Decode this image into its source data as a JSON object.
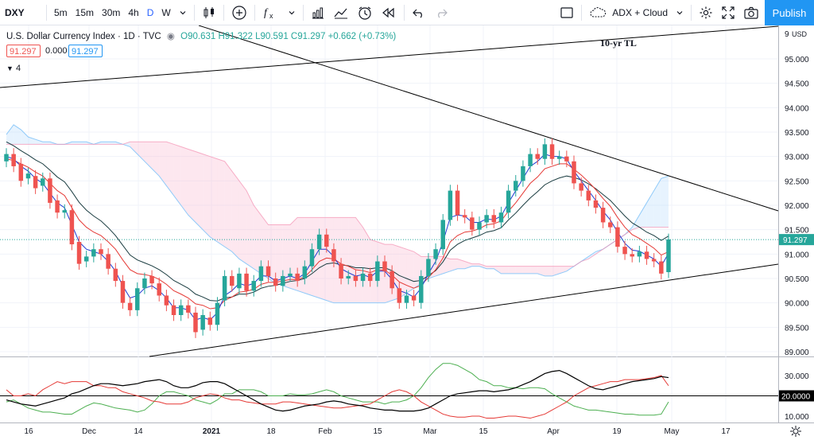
{
  "toolbar": {
    "symbol": "DXY",
    "intervals": [
      "5m",
      "15m",
      "30m",
      "4h",
      "D",
      "W"
    ],
    "active_interval": "D",
    "indicator_template": "ADX + Cloud",
    "publish_label": "Publish"
  },
  "legend": {
    "title": "U.S. Dollar Currency Index · 1D · TVC",
    "ohlc": "O90.631 H91.322 L90.591 C91.297 +0.662 (+0.73%)",
    "bid": "91.297",
    "spread": "0.000",
    "ask": "91.297",
    "indicators_toggle": "4"
  },
  "annotations": {
    "trendline_label": "10-yr TL"
  },
  "price_axis": {
    "currency": "USD",
    "ticks": [
      "95.000",
      "94.500",
      "94.000",
      "93.500",
      "93.000",
      "92.500",
      "92.000",
      "91.500",
      "91.000",
      "90.500",
      "90.000",
      "89.500",
      "89.000"
    ],
    "top_tick": "9",
    "last_price": "91.297"
  },
  "adx_axis": {
    "ticks": [
      "30.000",
      "10.000"
    ],
    "level": "20.0000"
  },
  "time_axis": {
    "labels": [
      "16",
      "Dec",
      "14",
      "2021",
      "18",
      "Feb",
      "15",
      "Mar",
      "15",
      "Apr",
      "19",
      "May",
      "17"
    ]
  },
  "chart_data": {
    "type": "candlestick",
    "title": "U.S. Dollar Currency Index · 1D · TVC",
    "ylim": [
      88.9,
      95.5
    ],
    "last_close": 91.297,
    "colors": {
      "up": "#26a69a",
      "down": "#ef5350",
      "ema_fast": "#1e3bd1",
      "ema_mid": "#e53935",
      "ema_slow": "#1a3c40",
      "adx": "#000000",
      "di_plus": "#4caf50",
      "di_minus": "#e53935",
      "cloud_bull": "#bbdefb",
      "cloud_bear": "#f8bbd0"
    },
    "candles": [
      {
        "o": 92.9,
        "c": 93.05
      },
      {
        "o": 93.05,
        "c": 92.8
      },
      {
        "o": 92.85,
        "c": 92.5
      },
      {
        "o": 92.55,
        "c": 92.65
      },
      {
        "o": 92.6,
        "c": 92.35
      },
      {
        "o": 92.4,
        "c": 92.55
      },
      {
        "o": 92.55,
        "c": 92.05
      },
      {
        "o": 92.1,
        "c": 91.85
      },
      {
        "o": 91.85,
        "c": 91.9
      },
      {
        "o": 91.9,
        "c": 91.2
      },
      {
        "o": 91.25,
        "c": 90.8
      },
      {
        "o": 90.85,
        "c": 90.95
      },
      {
        "o": 90.95,
        "c": 91.1
      },
      {
        "o": 91.1,
        "c": 91.0
      },
      {
        "o": 91.0,
        "c": 90.7
      },
      {
        "o": 90.7,
        "c": 90.45
      },
      {
        "o": 90.45,
        "c": 90.0
      },
      {
        "o": 90.0,
        "c": 89.85
      },
      {
        "o": 89.85,
        "c": 90.3
      },
      {
        "o": 90.3,
        "c": 90.5
      },
      {
        "o": 90.55,
        "c": 90.4
      },
      {
        "o": 90.4,
        "c": 90.15
      },
      {
        "o": 90.15,
        "c": 89.95
      },
      {
        "o": 89.95,
        "c": 89.75
      },
      {
        "o": 89.75,
        "c": 89.95
      },
      {
        "o": 89.95,
        "c": 89.8
      },
      {
        "o": 89.8,
        "c": 89.4
      },
      {
        "o": 89.45,
        "c": 89.75
      },
      {
        "o": 89.7,
        "c": 89.55
      },
      {
        "o": 89.55,
        "c": 90.0
      },
      {
        "o": 90.05,
        "c": 90.55
      },
      {
        "o": 90.55,
        "c": 90.35
      },
      {
        "o": 90.3,
        "c": 90.6
      },
      {
        "o": 90.6,
        "c": 90.25
      },
      {
        "o": 90.25,
        "c": 90.45
      },
      {
        "o": 90.45,
        "c": 90.75
      },
      {
        "o": 90.75,
        "c": 90.55
      },
      {
        "o": 90.5,
        "c": 90.35
      },
      {
        "o": 90.35,
        "c": 90.55
      },
      {
        "o": 90.55,
        "c": 90.6
      },
      {
        "o": 90.6,
        "c": 90.45
      },
      {
        "o": 90.5,
        "c": 90.75
      },
      {
        "o": 90.75,
        "c": 91.1
      },
      {
        "o": 91.1,
        "c": 91.4
      },
      {
        "o": 91.4,
        "c": 91.15
      },
      {
        "o": 91.1,
        "c": 90.85
      },
      {
        "o": 90.8,
        "c": 90.5
      },
      {
        "o": 90.5,
        "c": 90.55
      },
      {
        "o": 90.55,
        "c": 90.45
      },
      {
        "o": 90.45,
        "c": 90.6
      },
      {
        "o": 90.6,
        "c": 90.45
      },
      {
        "o": 90.45,
        "c": 90.85
      },
      {
        "o": 90.85,
        "c": 90.65
      },
      {
        "o": 90.65,
        "c": 90.3
      },
      {
        "o": 90.3,
        "c": 90.0
      },
      {
        "o": 90.0,
        "c": 90.15
      },
      {
        "o": 90.15,
        "c": 90.05
      },
      {
        "o": 90.0,
        "c": 90.55
      },
      {
        "o": 90.55,
        "c": 90.9
      },
      {
        "o": 90.9,
        "c": 91.1
      },
      {
        "o": 91.1,
        "c": 91.7
      },
      {
        "o": 91.7,
        "c": 92.3
      },
      {
        "o": 92.3,
        "c": 91.8
      },
      {
        "o": 91.8,
        "c": 91.75
      },
      {
        "o": 91.75,
        "c": 91.5
      },
      {
        "o": 91.5,
        "c": 91.65
      },
      {
        "o": 91.65,
        "c": 91.8
      },
      {
        "o": 91.8,
        "c": 91.65
      },
      {
        "o": 91.65,
        "c": 91.85
      },
      {
        "o": 91.85,
        "c": 92.3
      },
      {
        "o": 92.3,
        "c": 92.5
      },
      {
        "o": 92.5,
        "c": 92.8
      },
      {
        "o": 92.8,
        "c": 93.05
      },
      {
        "o": 93.05,
        "c": 92.95
      },
      {
        "o": 92.95,
        "c": 93.25
      },
      {
        "o": 93.25,
        "c": 92.95
      },
      {
        "o": 92.95,
        "c": 93.0
      },
      {
        "o": 93.0,
        "c": 92.9
      },
      {
        "o": 92.9,
        "c": 92.45
      },
      {
        "o": 92.45,
        "c": 92.3
      },
      {
        "o": 92.3,
        "c": 92.1
      },
      {
        "o": 92.1,
        "c": 91.95
      },
      {
        "o": 91.95,
        "c": 91.65
      },
      {
        "o": 91.65,
        "c": 91.55
      },
      {
        "o": 91.55,
        "c": 91.15
      },
      {
        "o": 91.15,
        "c": 91.0
      },
      {
        "o": 91.0,
        "c": 90.95
      },
      {
        "o": 90.95,
        "c": 91.05
      },
      {
        "o": 91.05,
        "c": 90.9
      },
      {
        "o": 90.9,
        "c": 90.85
      },
      {
        "o": 90.85,
        "c": 90.6
      },
      {
        "o": 90.63,
        "c": 91.3
      }
    ],
    "ema_fast": [
      93.0,
      92.95,
      92.8,
      92.7,
      92.55,
      92.45,
      92.25,
      92.05,
      91.95,
      91.6,
      91.25,
      91.1,
      91.05,
      91.0,
      90.85,
      90.65,
      90.35,
      90.1,
      90.15,
      90.3,
      90.35,
      90.25,
      90.1,
      89.9,
      89.9,
      89.85,
      89.65,
      89.7,
      89.65,
      89.8,
      90.15,
      90.25,
      90.4,
      90.35,
      90.4,
      90.55,
      90.55,
      90.45,
      90.5,
      90.55,
      90.5,
      90.6,
      90.85,
      91.1,
      91.1,
      90.95,
      90.7,
      90.62,
      90.55,
      90.58,
      90.52,
      90.65,
      90.65,
      90.48,
      90.25,
      90.2,
      90.12,
      90.3,
      90.6,
      90.85,
      91.25,
      91.75,
      91.8,
      91.78,
      91.65,
      91.65,
      91.72,
      91.7,
      91.78,
      92.05,
      92.3,
      92.55,
      92.8,
      92.9,
      93.05,
      93.0,
      93.0,
      92.95,
      92.7,
      92.5,
      92.3,
      92.1,
      91.88,
      91.7,
      91.45,
      91.22,
      91.08,
      91.06,
      90.98,
      90.9,
      90.75,
      91.02
    ],
    "ema_mid": [
      92.95,
      92.92,
      92.85,
      92.78,
      92.68,
      92.6,
      92.45,
      92.3,
      92.2,
      91.95,
      91.7,
      91.55,
      91.45,
      91.38,
      91.25,
      91.1,
      90.88,
      90.68,
      90.6,
      90.58,
      90.55,
      90.48,
      90.38,
      90.25,
      90.18,
      90.1,
      89.98,
      89.95,
      89.88,
      89.9,
      90.05,
      90.12,
      90.22,
      90.24,
      90.28,
      90.38,
      90.42,
      90.42,
      90.45,
      90.48,
      90.48,
      90.53,
      90.68,
      90.85,
      90.92,
      90.9,
      90.8,
      90.75,
      90.68,
      90.66,
      90.62,
      90.68,
      90.67,
      90.57,
      90.43,
      90.36,
      90.3,
      90.36,
      90.52,
      90.68,
      90.92,
      91.25,
      91.38,
      91.45,
      91.47,
      91.52,
      91.6,
      91.62,
      91.68,
      91.88,
      92.05,
      92.25,
      92.45,
      92.58,
      92.75,
      92.8,
      92.85,
      92.85,
      92.74,
      92.62,
      92.48,
      92.32,
      92.14,
      91.98,
      91.75,
      91.55,
      91.4,
      91.32,
      91.22,
      91.12,
      90.98,
      91.05
    ],
    "ema_slow": [
      93.3,
      93.22,
      93.12,
      93.03,
      92.93,
      92.85,
      92.72,
      92.58,
      92.48,
      92.28,
      92.06,
      91.9,
      91.78,
      91.68,
      91.54,
      91.38,
      91.18,
      90.98,
      90.88,
      90.82,
      90.76,
      90.68,
      90.58,
      90.46,
      90.38,
      90.3,
      90.18,
      90.12,
      90.05,
      90.04,
      90.1,
      90.12,
      90.18,
      90.18,
      90.22,
      90.3,
      90.34,
      90.36,
      90.4,
      90.44,
      90.46,
      90.5,
      90.6,
      90.72,
      90.8,
      90.82,
      90.78,
      90.76,
      90.72,
      90.72,
      90.7,
      90.72,
      90.72,
      90.66,
      90.56,
      90.5,
      90.44,
      90.46,
      90.56,
      90.66,
      90.84,
      91.08,
      91.2,
      91.28,
      91.33,
      91.38,
      91.45,
      91.48,
      91.54,
      91.7,
      91.84,
      92.0,
      92.15,
      92.28,
      92.42,
      92.5,
      92.56,
      92.6,
      92.57,
      92.52,
      92.44,
      92.34,
      92.22,
      92.1,
      91.94,
      91.78,
      91.64,
      91.55,
      91.45,
      91.38,
      91.28,
      91.37
    ],
    "cloud_a": [
      93.45,
      93.65,
      93.55,
      93.4,
      93.35,
      93.3,
      93.3,
      93.25,
      93.25,
      93.3,
      93.3,
      93.3,
      93.25,
      93.3,
      93.3,
      93.3,
      93.25,
      93.2,
      93.05,
      92.9,
      92.75,
      92.6,
      92.4,
      92.2,
      92.0,
      91.8,
      91.65,
      91.5,
      91.35,
      91.25,
      91.15,
      91.05,
      90.9,
      90.8,
      90.7,
      90.6,
      90.5,
      90.4,
      90.35,
      90.3,
      90.25,
      90.2,
      90.15,
      90.1,
      90.05,
      90.0,
      90.0,
      90.0,
      90.0,
      90.0,
      90.0,
      90.0,
      90.0,
      90.05,
      90.1,
      90.2,
      90.3,
      90.4,
      90.5,
      90.55,
      90.6,
      90.65,
      90.7,
      90.7,
      90.75,
      90.75,
      90.7,
      90.7,
      90.6,
      90.6,
      90.6,
      90.6,
      90.6,
      90.6,
      90.55,
      90.55,
      90.6,
      90.65,
      90.75,
      90.85,
      90.95,
      91.05,
      91.1,
      91.2,
      91.3,
      91.4,
      91.55,
      91.8,
      92.05,
      92.3,
      92.55,
      92.6
    ],
    "cloud_b": [
      93.25,
      93.25,
      93.25,
      93.25,
      93.25,
      93.25,
      93.25,
      93.25,
      93.25,
      93.25,
      93.25,
      93.25,
      93.25,
      93.25,
      93.25,
      93.25,
      93.25,
      93.3,
      93.3,
      93.3,
      93.3,
      93.3,
      93.3,
      93.25,
      93.2,
      93.15,
      93.1,
      93.05,
      93.0,
      92.95,
      92.9,
      92.7,
      92.5,
      92.3,
      92.0,
      91.8,
      91.6,
      91.6,
      91.6,
      91.6,
      91.75,
      91.75,
      91.75,
      91.75,
      91.75,
      91.75,
      91.75,
      91.75,
      91.75,
      91.55,
      91.3,
      91.25,
      91.2,
      91.2,
      91.15,
      91.1,
      91.05,
      90.95,
      90.95,
      90.95,
      90.95,
      90.9,
      90.9,
      90.85,
      90.8,
      90.8,
      90.75,
      90.75,
      90.75,
      90.75,
      90.75,
      90.75,
      90.75,
      90.75,
      90.75,
      90.75,
      90.75,
      90.75,
      90.75,
      90.85,
      90.9,
      91.0,
      91.1,
      91.2,
      91.3,
      91.4,
      91.5,
      91.55,
      91.55,
      91.55,
      91.55,
      91.55
    ],
    "adx": [
      18,
      17,
      16,
      15.5,
      15,
      16,
      17,
      18,
      19,
      21,
      22,
      23.5,
      25,
      26,
      26,
      25.5,
      25,
      25.5,
      26,
      27,
      27.5,
      28,
      27,
      25,
      24,
      24,
      25,
      26.5,
      27,
      27,
      26,
      24,
      22,
      20,
      18,
      16,
      14.5,
      13,
      12.5,
      13,
      14,
      15,
      15.5,
      16,
      17,
      17.5,
      17,
      16,
      15.5,
      15,
      14,
      13.5,
      13,
      13,
      12.5,
      12.5,
      12.5,
      13,
      14,
      16,
      18,
      20,
      21,
      21.5,
      22,
      22.5,
      22.5,
      22,
      22.5,
      23,
      24,
      25.5,
      27,
      29,
      31,
      32,
      32.5,
      31,
      29,
      27,
      25,
      23.5,
      23,
      24,
      25,
      26,
      27,
      27.5,
      28,
      28.5,
      29.5,
      29
    ],
    "di_plus": [
      17,
      18,
      16,
      14,
      13,
      12,
      12,
      11.5,
      11,
      11,
      13,
      15,
      16.5,
      16,
      15,
      14,
      13.5,
      13,
      12,
      13,
      16,
      20,
      22,
      22,
      21,
      20,
      18,
      17,
      16,
      18,
      21,
      21,
      23,
      23,
      23,
      22,
      20,
      20,
      20,
      21,
      20.5,
      20.5,
      21,
      22,
      23,
      22,
      20,
      19,
      18,
      17,
      17,
      17,
      16,
      17,
      17,
      18,
      20,
      24,
      29,
      33,
      36,
      36,
      35,
      33,
      31,
      28,
      27,
      25,
      25,
      24,
      24,
      23.5,
      24,
      24,
      23.5,
      21,
      19,
      17,
      15,
      14,
      13,
      13,
      12.5,
      12,
      11.5,
      11,
      11,
      10.5,
      10.5,
      10.5,
      11,
      17
    ],
    "di_minus": [
      23,
      20,
      20,
      21,
      20,
      23,
      25,
      27,
      26,
      27,
      27,
      27,
      25,
      25,
      24,
      24,
      22,
      21,
      20,
      19,
      17.5,
      17,
      16,
      16,
      16,
      17,
      19,
      20,
      21,
      20.5,
      19,
      18,
      18,
      17,
      16.5,
      16,
      16,
      16,
      17,
      17,
      16.5,
      16,
      15.5,
      15,
      14.5,
      14,
      14,
      14.5,
      15,
      15.5,
      16,
      18,
      20,
      22,
      23,
      22,
      20,
      17,
      15,
      13,
      11,
      10,
      9.5,
      9.5,
      10,
      10,
      9,
      9,
      9.5,
      10,
      10,
      9.5,
      9,
      10,
      11,
      13,
      15,
      17,
      20,
      22,
      24,
      25,
      26,
      27,
      27,
      28,
      28,
      28,
      28.5,
      29,
      30,
      25
    ]
  }
}
